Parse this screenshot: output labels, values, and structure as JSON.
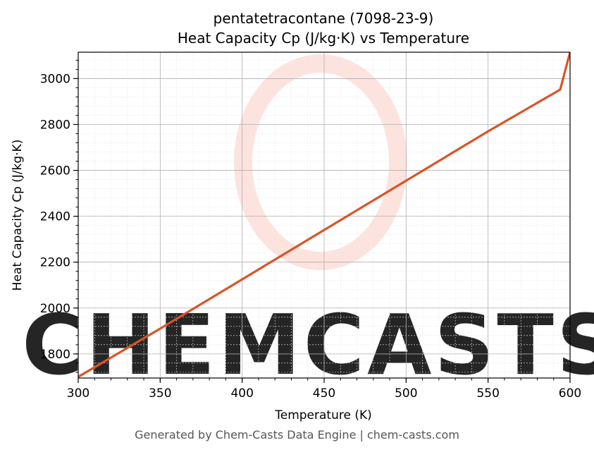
{
  "chart_data": {
    "type": "line",
    "title": "pentatetracontane (7098-23-9)",
    "subtitle": "Heat Capacity Cp (J/kg·K) vs Temperature",
    "xlabel": "Temperature (K)",
    "ylabel": "Heat Capacity Cp (J/kg·K)",
    "xlim": [
      300,
      600
    ],
    "ylim": [
      1695,
      3115
    ],
    "x_ticks": [
      300,
      350,
      400,
      450,
      500,
      550,
      600
    ],
    "y_ticks": [
      1800,
      2000,
      2200,
      2400,
      2600,
      2800,
      3000
    ],
    "grid": true,
    "series": [
      {
        "color": "#d95426",
        "x": [
          300,
          350,
          400,
          450,
          500,
          550,
          594,
          600
        ],
        "y": [
          1700,
          1910,
          2125,
          2340,
          2555,
          2770,
          2952,
          3115
        ]
      }
    ]
  },
  "watermark": {
    "text": "CHEMCASTS",
    "color": "#fde0da"
  },
  "footer": "Generated by Chem-Casts Data Engine | chem-casts.com"
}
